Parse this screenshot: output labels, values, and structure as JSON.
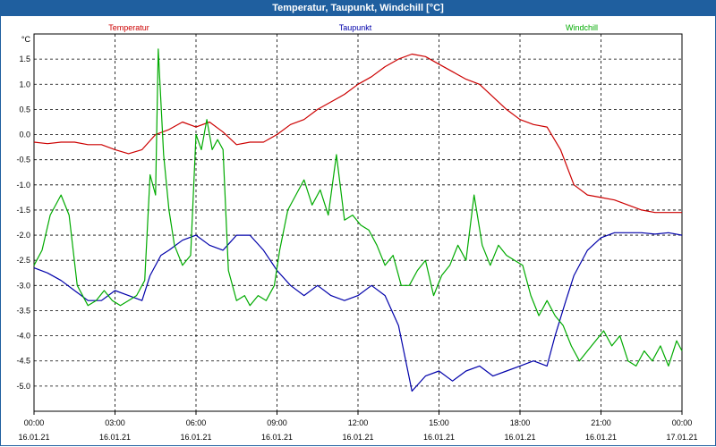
{
  "window": {
    "title": "Temperatur, Taupunkt, Windchill [°C]"
  },
  "chart_data": {
    "type": "line",
    "title": "Temperatur, Taupunkt, Windchill [°C]",
    "ylabel": "°C",
    "ylim": [
      -5.5,
      2.0
    ],
    "y_ticks": [
      1.5,
      1.0,
      0.5,
      0.0,
      -0.5,
      -1.0,
      -1.5,
      -2.0,
      -2.5,
      -3.0,
      -3.5,
      -4.0,
      -4.5,
      -5.0
    ],
    "y_tick_labels": [
      "1.5",
      "1.0",
      "0.5",
      "0.0",
      "-0.5",
      "-1.0",
      "-1.5",
      "-2.0",
      "-2.5",
      "-3.0",
      "-3.5",
      "-4.0",
      "-4.5",
      "-5.0"
    ],
    "xlim": [
      0,
      24
    ],
    "x_ticks": [
      0,
      3,
      6,
      9,
      12,
      15,
      18,
      21,
      24
    ],
    "x_tick_times": [
      "00:00",
      "03:00",
      "06:00",
      "09:00",
      "12:00",
      "15:00",
      "18:00",
      "21:00",
      "00:00"
    ],
    "x_tick_dates": [
      "16.01.21",
      "16.01.21",
      "16.01.21",
      "16.01.21",
      "16.01.21",
      "16.01.21",
      "16.01.21",
      "16.01.21",
      "17.01.21"
    ],
    "grid": true,
    "series": [
      {
        "name": "Temperatur",
        "color": "#cc0000",
        "points": [
          [
            0,
            -0.15
          ],
          [
            0.5,
            -0.18
          ],
          [
            1,
            -0.15
          ],
          [
            1.5,
            -0.15
          ],
          [
            2,
            -0.2
          ],
          [
            2.5,
            -0.2
          ],
          [
            3,
            -0.3
          ],
          [
            3.5,
            -0.38
          ],
          [
            4,
            -0.3
          ],
          [
            4.5,
            0.0
          ],
          [
            5,
            0.1
          ],
          [
            5.5,
            0.25
          ],
          [
            6,
            0.15
          ],
          [
            6.5,
            0.25
          ],
          [
            7,
            0.05
          ],
          [
            7.5,
            -0.2
          ],
          [
            8,
            -0.15
          ],
          [
            8.5,
            -0.15
          ],
          [
            9,
            0.0
          ],
          [
            9.5,
            0.2
          ],
          [
            10,
            0.3
          ],
          [
            10.5,
            0.5
          ],
          [
            11,
            0.65
          ],
          [
            11.5,
            0.8
          ],
          [
            12,
            1.0
          ],
          [
            12.5,
            1.15
          ],
          [
            13,
            1.35
          ],
          [
            13.5,
            1.5
          ],
          [
            14,
            1.6
          ],
          [
            14.5,
            1.55
          ],
          [
            15,
            1.4
          ],
          [
            15.5,
            1.25
          ],
          [
            16,
            1.1
          ],
          [
            16.5,
            1.0
          ],
          [
            17,
            0.75
          ],
          [
            17.5,
            0.5
          ],
          [
            18,
            0.3
          ],
          [
            18.5,
            0.2
          ],
          [
            19,
            0.15
          ],
          [
            19.5,
            -0.3
          ],
          [
            20,
            -1.0
          ],
          [
            20.5,
            -1.2
          ],
          [
            21,
            -1.25
          ],
          [
            21.5,
            -1.3
          ],
          [
            22,
            -1.4
          ],
          [
            22.5,
            -1.5
          ],
          [
            23,
            -1.55
          ],
          [
            23.5,
            -1.55
          ],
          [
            24,
            -1.55
          ]
        ]
      },
      {
        "name": "Taupunkt",
        "color": "#0000aa",
        "points": [
          [
            0,
            -2.65
          ],
          [
            0.5,
            -2.75
          ],
          [
            1,
            -2.9
          ],
          [
            1.5,
            -3.1
          ],
          [
            2,
            -3.3
          ],
          [
            2.5,
            -3.3
          ],
          [
            3,
            -3.1
          ],
          [
            3.5,
            -3.2
          ],
          [
            4,
            -3.3
          ],
          [
            4.3,
            -2.8
          ],
          [
            4.7,
            -2.4
          ],
          [
            5,
            -2.3
          ],
          [
            5.5,
            -2.1
          ],
          [
            6,
            -2.0
          ],
          [
            6.5,
            -2.2
          ],
          [
            7,
            -2.3
          ],
          [
            7.5,
            -2.0
          ],
          [
            8,
            -2.0
          ],
          [
            8.5,
            -2.3
          ],
          [
            9,
            -2.7
          ],
          [
            9.5,
            -3.0
          ],
          [
            10,
            -3.2
          ],
          [
            10.5,
            -3.0
          ],
          [
            11,
            -3.2
          ],
          [
            11.5,
            -3.3
          ],
          [
            12,
            -3.2
          ],
          [
            12.5,
            -3.0
          ],
          [
            13,
            -3.2
          ],
          [
            13.5,
            -3.8
          ],
          [
            14,
            -5.1
          ],
          [
            14.5,
            -4.8
          ],
          [
            15,
            -4.7
          ],
          [
            15.5,
            -4.9
          ],
          [
            16,
            -4.7
          ],
          [
            16.5,
            -4.6
          ],
          [
            17,
            -4.8
          ],
          [
            17.5,
            -4.7
          ],
          [
            18,
            -4.6
          ],
          [
            18.5,
            -4.5
          ],
          [
            19,
            -4.6
          ],
          [
            19.3,
            -4.0
          ],
          [
            19.7,
            -3.3
          ],
          [
            20,
            -2.8
          ],
          [
            20.5,
            -2.3
          ],
          [
            21,
            -2.05
          ],
          [
            21.5,
            -1.95
          ],
          [
            22,
            -1.95
          ],
          [
            22.5,
            -1.95
          ],
          [
            23,
            -1.98
          ],
          [
            23.5,
            -1.95
          ],
          [
            24,
            -2.0
          ]
        ]
      },
      {
        "name": "Windchill",
        "color": "#00aa00",
        "points": [
          [
            0,
            -2.6
          ],
          [
            0.3,
            -2.3
          ],
          [
            0.6,
            -1.6
          ],
          [
            1,
            -1.2
          ],
          [
            1.3,
            -1.6
          ],
          [
            1.6,
            -3.0
          ],
          [
            2,
            -3.4
          ],
          [
            2.3,
            -3.3
          ],
          [
            2.6,
            -3.1
          ],
          [
            2.9,
            -3.3
          ],
          [
            3.2,
            -3.4
          ],
          [
            3.5,
            -3.3
          ],
          [
            3.8,
            -3.2
          ],
          [
            4.1,
            -2.9
          ],
          [
            4.3,
            -0.8
          ],
          [
            4.5,
            -1.2
          ],
          [
            4.6,
            1.7
          ],
          [
            4.8,
            -0.4
          ],
          [
            5.0,
            -1.5
          ],
          [
            5.2,
            -2.2
          ],
          [
            5.5,
            -2.6
          ],
          [
            5.8,
            -2.4
          ],
          [
            6.0,
            0.0
          ],
          [
            6.2,
            -0.3
          ],
          [
            6.4,
            0.3
          ],
          [
            6.6,
            -0.3
          ],
          [
            6.8,
            -0.1
          ],
          [
            7.0,
            -0.3
          ],
          [
            7.2,
            -2.7
          ],
          [
            7.5,
            -3.3
          ],
          [
            7.8,
            -3.2
          ],
          [
            8.0,
            -3.4
          ],
          [
            8.3,
            -3.2
          ],
          [
            8.6,
            -3.3
          ],
          [
            8.9,
            -3.0
          ],
          [
            9.1,
            -2.3
          ],
          [
            9.4,
            -1.5
          ],
          [
            9.7,
            -1.2
          ],
          [
            10.0,
            -0.9
          ],
          [
            10.3,
            -1.4
          ],
          [
            10.6,
            -1.1
          ],
          [
            10.9,
            -1.6
          ],
          [
            11.2,
            -0.4
          ],
          [
            11.5,
            -1.7
          ],
          [
            11.8,
            -1.6
          ],
          [
            12.1,
            -1.8
          ],
          [
            12.4,
            -1.9
          ],
          [
            12.7,
            -2.2
          ],
          [
            13.0,
            -2.6
          ],
          [
            13.3,
            -2.4
          ],
          [
            13.6,
            -3.0
          ],
          [
            13.9,
            -3.0
          ],
          [
            14.2,
            -2.7
          ],
          [
            14.5,
            -2.5
          ],
          [
            14.8,
            -3.2
          ],
          [
            15.1,
            -2.8
          ],
          [
            15.4,
            -2.6
          ],
          [
            15.7,
            -2.2
          ],
          [
            16.0,
            -2.5
          ],
          [
            16.3,
            -1.2
          ],
          [
            16.6,
            -2.2
          ],
          [
            16.9,
            -2.6
          ],
          [
            17.2,
            -2.2
          ],
          [
            17.5,
            -2.4
          ],
          [
            17.8,
            -2.5
          ],
          [
            18.1,
            -2.6
          ],
          [
            18.4,
            -3.2
          ],
          [
            18.7,
            -3.6
          ],
          [
            19.0,
            -3.3
          ],
          [
            19.3,
            -3.6
          ],
          [
            19.6,
            -3.8
          ],
          [
            19.9,
            -4.2
          ],
          [
            20.2,
            -4.5
          ],
          [
            20.5,
            -4.3
          ],
          [
            20.8,
            -4.1
          ],
          [
            21.1,
            -3.9
          ],
          [
            21.4,
            -4.2
          ],
          [
            21.7,
            -4.0
          ],
          [
            22.0,
            -4.5
          ],
          [
            22.3,
            -4.6
          ],
          [
            22.6,
            -4.3
          ],
          [
            22.9,
            -4.5
          ],
          [
            23.2,
            -4.2
          ],
          [
            23.5,
            -4.6
          ],
          [
            23.8,
            -4.1
          ],
          [
            24.0,
            -4.3
          ]
        ]
      }
    ]
  }
}
